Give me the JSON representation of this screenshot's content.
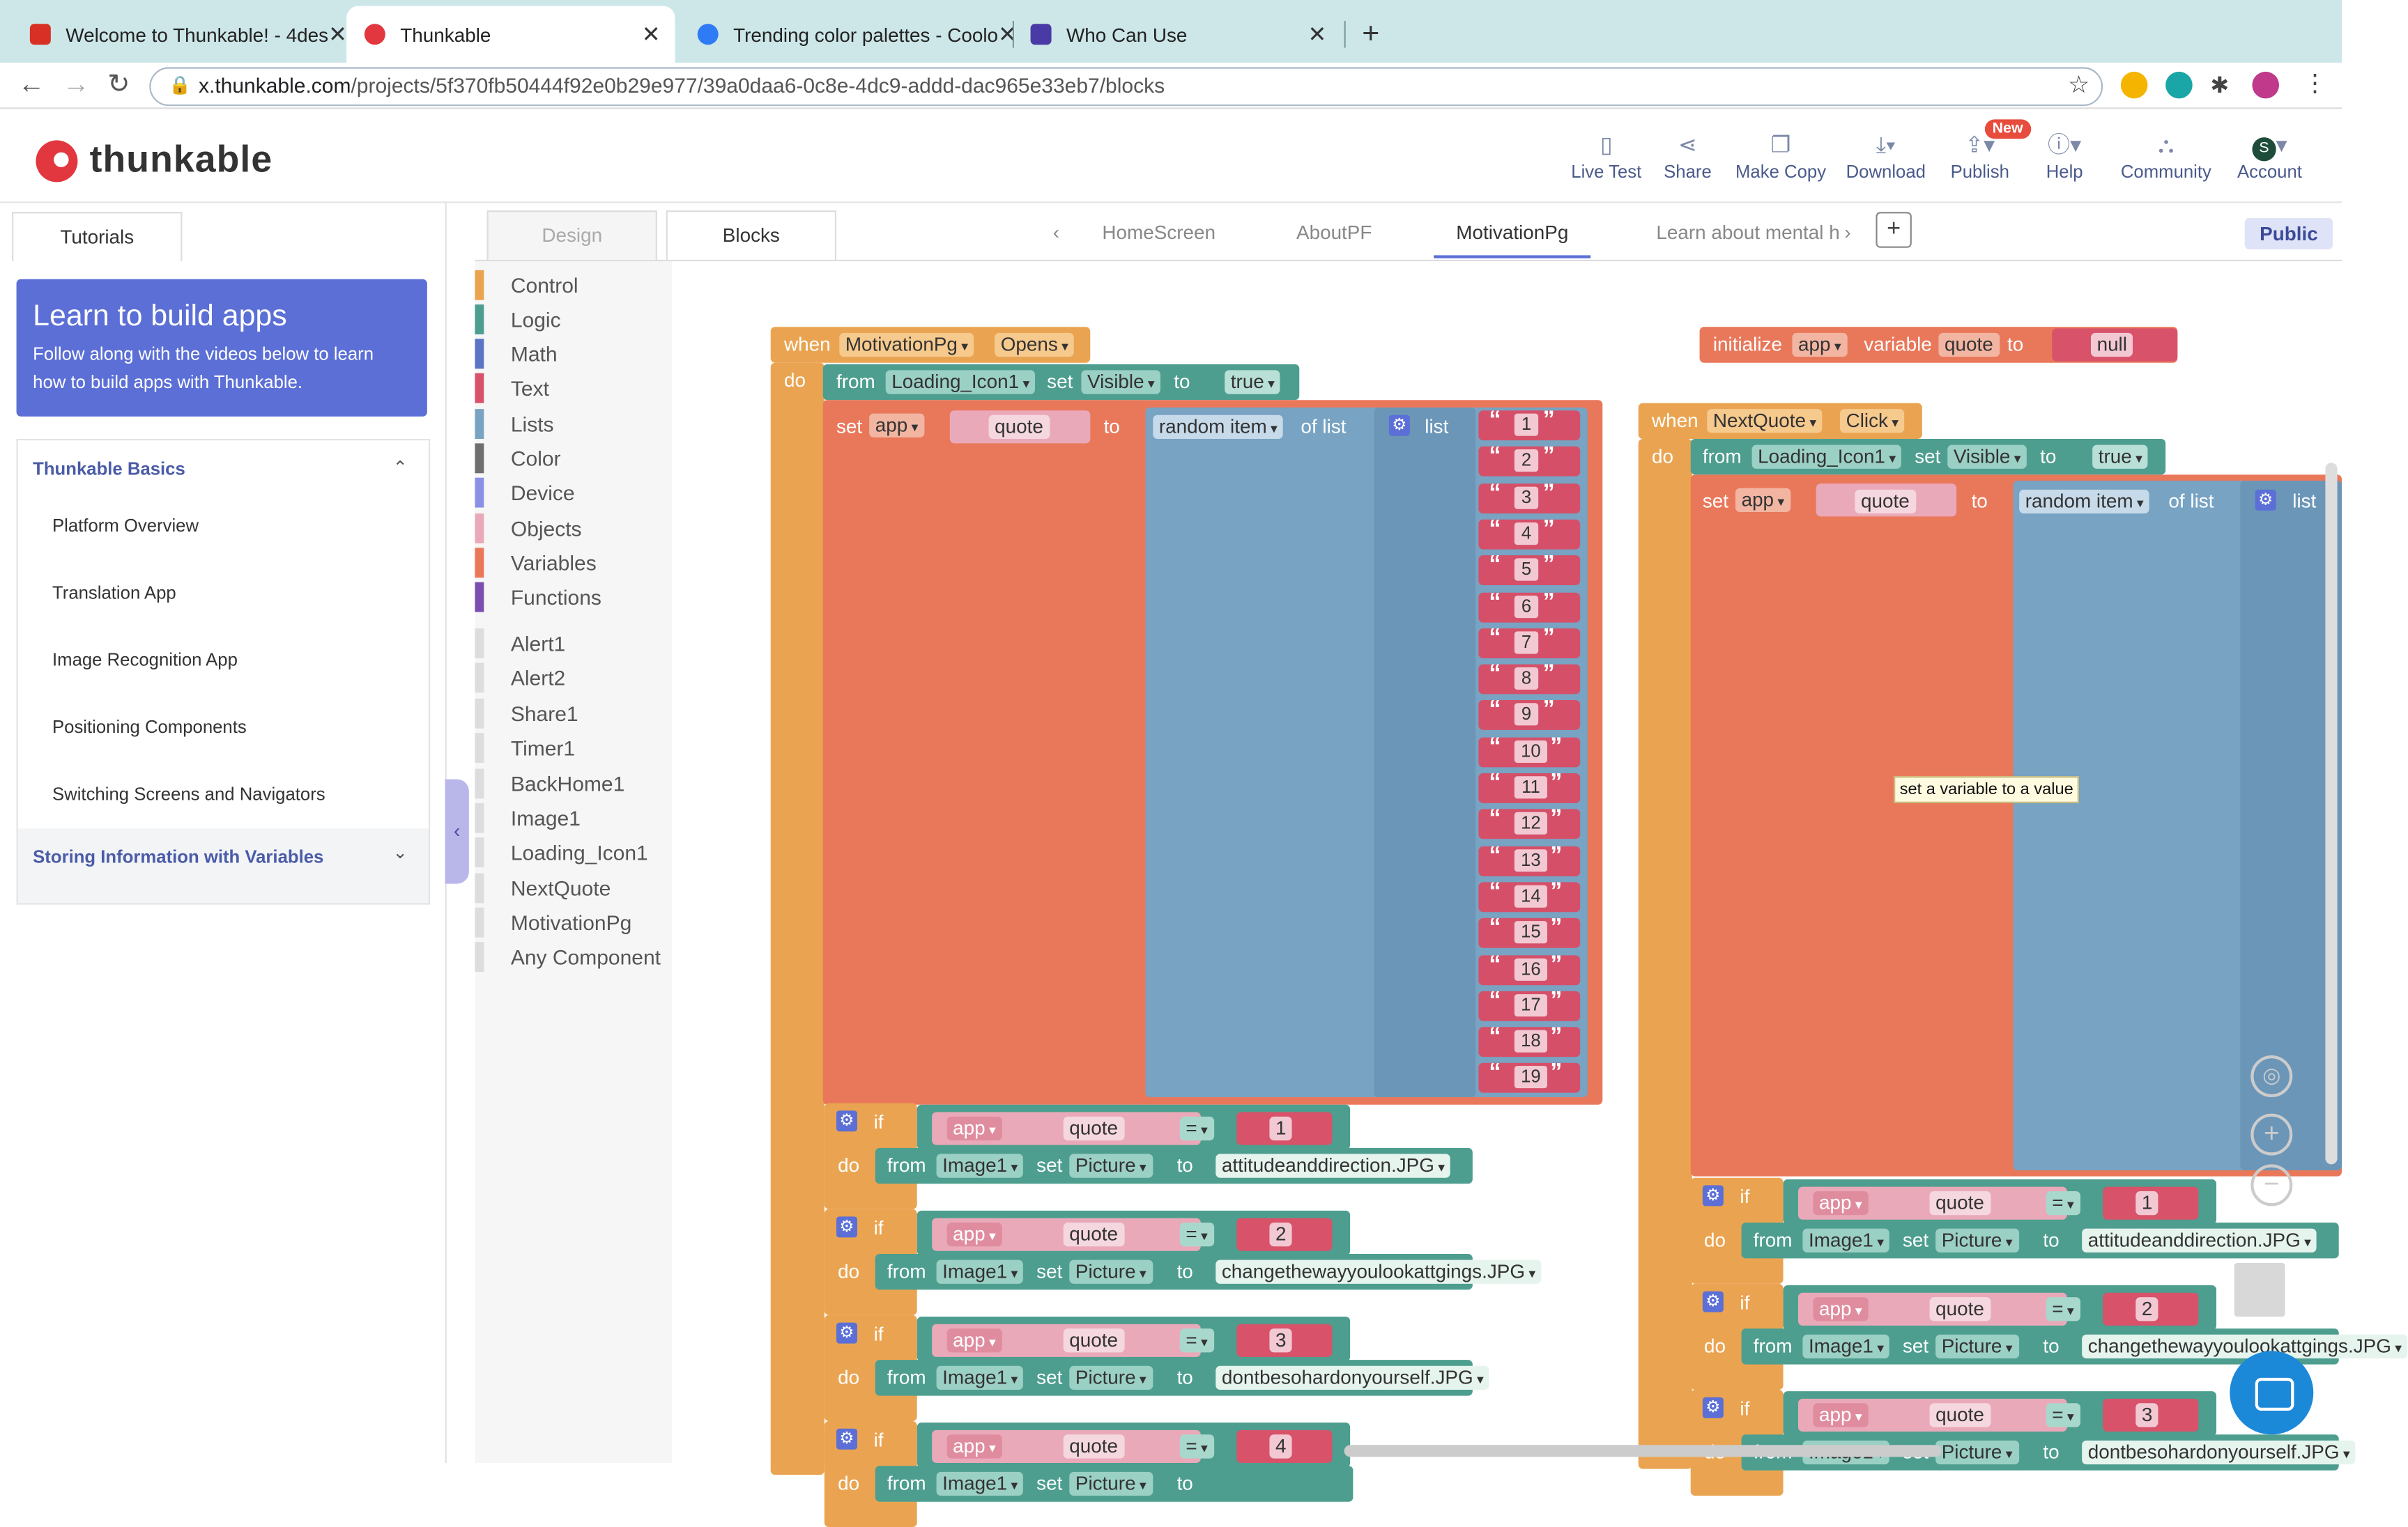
{
  "browser": {
    "tabs": [
      {
        "title": "Welcome to Thunkable! - 4des",
        "favicon_color": "#d93025"
      },
      {
        "title": "Thunkable",
        "favicon_color": "#e2373f"
      },
      {
        "title": "Trending color palettes - Coolo",
        "favicon_color": "#2f7bf5"
      },
      {
        "title": "Who Can Use",
        "favicon_color": "#4a3aa6"
      }
    ],
    "new_tab": "+",
    "url_host": "x.thunkable.com",
    "url_path": "/projects/5f370fb50444f92e0b29e977/39a0daa6-0c8e-4dc9-addd-dac965e33eb7/blocks"
  },
  "header": {
    "brand": "thunkable",
    "toolbar": [
      "Live Test",
      "Share",
      "Make Copy",
      "Download",
      "Publish",
      "Help",
      "Community",
      "Account"
    ],
    "new_badge": "New",
    "account_initial": "S"
  },
  "left": {
    "tab": "Tutorials",
    "learn_title": "Learn to build apps",
    "learn_desc": "Follow along with the videos below to learn how to build apps with Thunkable.",
    "section": "Thunkable Basics",
    "items": [
      "Platform Overview",
      "Translation App",
      "Image Recognition App",
      "Positioning Components",
      "Switching Screens and Navigators"
    ],
    "section2": "Storing Information with Variables"
  },
  "editor": {
    "tabs": [
      "Design",
      "Blocks"
    ],
    "screens": [
      "HomeScreen",
      "AboutPF",
      "MotivationPg",
      "Learn about mental h"
    ],
    "public": "Public",
    "palette": [
      {
        "label": "Control",
        "color": "#eaa451"
      },
      {
        "label": "Logic",
        "color": "#4d9e8f"
      },
      {
        "label": "Math",
        "color": "#5c74c5"
      },
      {
        "label": "Text",
        "color": "#d8526a"
      },
      {
        "label": "Lists",
        "color": "#78a3c2"
      },
      {
        "label": "Color",
        "color": "#6f6f6f"
      },
      {
        "label": "Device",
        "color": "#8a90e6"
      },
      {
        "label": "Objects",
        "color": "#eaa9b9"
      },
      {
        "label": "Variables",
        "color": "#e9785b"
      },
      {
        "label": "Functions",
        "color": "#7b4fb0"
      }
    ],
    "components": [
      "Alert1",
      "Alert2",
      "Share1",
      "Timer1",
      "BackHome1",
      "Image1",
      "Loading_Icon1",
      "NextQuote",
      "MotivationPg",
      "Any Component"
    ]
  },
  "workspace": {
    "kw": {
      "when": "when",
      "do": "do",
      "from": "from",
      "set": "set",
      "to": "to",
      "app": "app",
      "quote": "quote",
      "random": "random item",
      "oflist": "of list",
      "list": "list",
      "if": "if",
      "eq": "=",
      "visible": "Visible",
      "true": "true",
      "picture": "Picture",
      "image1": "Image1",
      "loading": "Loading_Icon1"
    },
    "event1": {
      "component": "MotivationPg",
      "event": "Opens"
    },
    "init": {
      "initialize": "initialize",
      "scope": "app",
      "variable": "variable",
      "name": "quote",
      "to": "to",
      "value": "null"
    },
    "event2": {
      "component": "NextQuote",
      "event": "Click"
    },
    "list_numbers": [
      "1",
      "2",
      "3",
      "4",
      "5",
      "6",
      "7",
      "8",
      "9",
      "10",
      "11",
      "12",
      "13",
      "14",
      "15",
      "16",
      "17",
      "18",
      "19"
    ],
    "ifs1": [
      {
        "n": "1",
        "pic": "attitudeanddirection.JPG"
      },
      {
        "n": "2",
        "pic": "changethewayyoulookattgings.JPG"
      },
      {
        "n": "3",
        "pic": "dontbesohardonyourself.JPG"
      },
      {
        "n": "4",
        "pic": ""
      }
    ],
    "ifs2": [
      {
        "n": "1",
        "pic": "attitudeanddirection.JPG"
      },
      {
        "n": "2",
        "pic": "changethewayyoulookattgings.JPG"
      },
      {
        "n": "3",
        "pic": "dontbesohardonyourself.JPG"
      }
    ],
    "tooltip": "set a variable to a value"
  }
}
